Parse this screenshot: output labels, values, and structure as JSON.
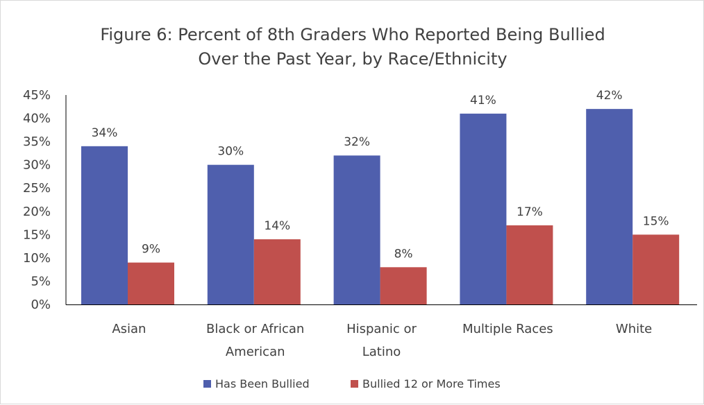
{
  "chart_data": {
    "type": "bar",
    "title_lines": [
      "Figure 6: Percent of 8th Graders Who Reported Being Bullied",
      "Over the Past Year, by Race/Ethnicity"
    ],
    "categories": [
      [
        "Asian"
      ],
      [
        "Black or African",
        "American"
      ],
      [
        "Hispanic or",
        "Latino"
      ],
      [
        "Multiple Races"
      ],
      [
        "White"
      ]
    ],
    "series": [
      {
        "name": "Has Been Bullied",
        "color": "#4f5fad",
        "values": [
          34,
          30,
          32,
          41,
          42
        ],
        "labels": [
          "34%",
          "30%",
          "32%",
          "41%",
          "42%"
        ]
      },
      {
        "name": "Bullied 12 or More Times",
        "color": "#c0504d",
        "values": [
          9,
          14,
          8,
          17,
          15
        ],
        "labels": [
          "9%",
          "14%",
          "8%",
          "17%",
          "15%"
        ]
      }
    ],
    "yticks": [
      "0%",
      "5%",
      "10%",
      "15%",
      "20%",
      "25%",
      "30%",
      "35%",
      "40%",
      "45%"
    ],
    "ylim": [
      0,
      45
    ],
    "legend_position": "bottom",
    "grid": false
  }
}
